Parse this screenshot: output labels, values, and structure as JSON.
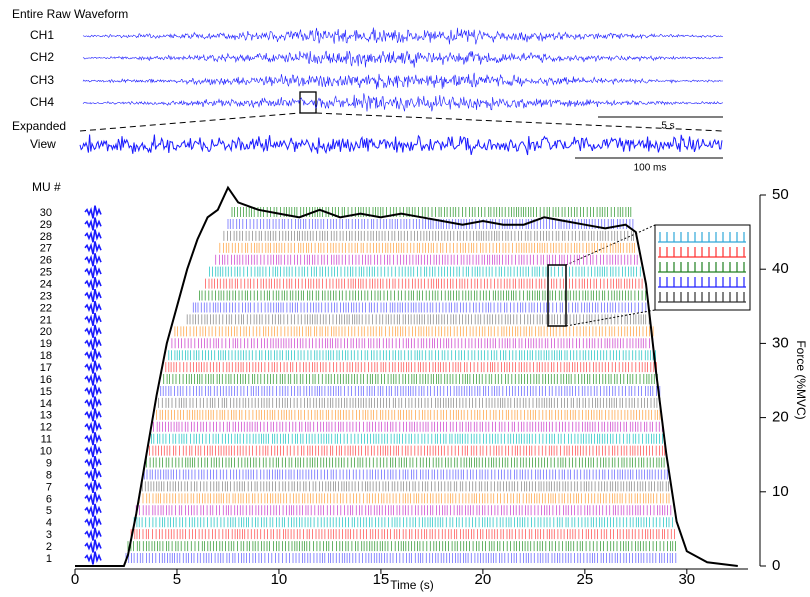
{
  "header": {
    "title": "Entire Raw Waveform",
    "channels": [
      "CH1",
      "CH2",
      "CH3",
      "CH4"
    ],
    "scale_bar": "5 s",
    "expanded": [
      "Expanded",
      "View"
    ],
    "expanded_scale_bar": "100 ms"
  },
  "chart_data": {
    "type": "line",
    "x_label": "Time (s)",
    "y2_label": "Force (%MVC)",
    "mu_label": "MU #",
    "xlim": [
      0,
      33
    ],
    "xticks": [
      0,
      5,
      10,
      15,
      20,
      25,
      30
    ],
    "y2lim": [
      0,
      50
    ],
    "y2ticks": [
      0,
      10,
      20,
      30,
      40,
      50
    ],
    "color": "#000000",
    "axis": "y2",
    "x": [
      0,
      2.4,
      2.6,
      3,
      3.5,
      4,
      4.5,
      5,
      5.5,
      6,
      6.5,
      7,
      7.5,
      8,
      9,
      10,
      11,
      12,
      13,
      14,
      15,
      16,
      17,
      18,
      19,
      20,
      21,
      22,
      23,
      24,
      25,
      26,
      27,
      27.5,
      28,
      28.5,
      29,
      29.5,
      30,
      31,
      32.5
    ],
    "values": [
      0,
      0,
      1.5,
      7,
      15,
      23,
      30,
      35,
      40,
      44,
      47,
      48,
      51,
      49,
      48,
      47.5,
      47,
      48,
      47,
      47.5,
      47,
      47.5,
      47,
      46.5,
      46,
      46.5,
      46,
      46,
      47,
      46.5,
      46,
      45.5,
      46,
      45,
      38,
      26,
      15,
      6,
      2,
      0.5,
      0
    ],
    "motor_units": [
      {
        "label": "1",
        "color": "#7070ff",
        "start": 2.5,
        "end": 29.6
      },
      {
        "label": "2",
        "color": "#40a040",
        "start": 2.6,
        "end": 29.5
      },
      {
        "label": "3",
        "color": "#ff5a5a",
        "start": 2.75,
        "end": 29.45
      },
      {
        "label": "4",
        "color": "#30c8c8",
        "start": 2.9,
        "end": 29.4
      },
      {
        "label": "5",
        "color": "#d050d0",
        "start": 3.0,
        "end": 29.3
      },
      {
        "label": "6",
        "color": "#ffaa50",
        "start": 3.15,
        "end": 29.25
      },
      {
        "label": "7",
        "color": "#909090",
        "start": 3.3,
        "end": 29.2
      },
      {
        "label": "8",
        "color": "#7070ff",
        "start": 3.4,
        "end": 29.1
      },
      {
        "label": "9",
        "color": "#40a040",
        "start": 3.5,
        "end": 29.05
      },
      {
        "label": "10",
        "color": "#ff5a5a",
        "start": 3.65,
        "end": 29.0
      },
      {
        "label": "11",
        "color": "#30c8c8",
        "start": 3.75,
        "end": 28.9
      },
      {
        "label": "12",
        "color": "#d050d0",
        "start": 3.85,
        "end": 28.85
      },
      {
        "label": "13",
        "color": "#ffaa50",
        "start": 4.0,
        "end": 28.8
      },
      {
        "label": "14",
        "color": "#909090",
        "start": 4.1,
        "end": 28.75
      },
      {
        "label": "15",
        "color": "#7070ff",
        "start": 4.2,
        "end": 28.7
      },
      {
        "label": "16",
        "color": "#40a040",
        "start": 4.35,
        "end": 28.6
      },
      {
        "label": "17",
        "color": "#ff5a5a",
        "start": 4.45,
        "end": 28.55
      },
      {
        "label": "18",
        "color": "#30c8c8",
        "start": 4.6,
        "end": 28.5
      },
      {
        "label": "19",
        "color": "#d050d0",
        "start": 4.75,
        "end": 28.4
      },
      {
        "label": "20",
        "color": "#ffaa50",
        "start": 4.9,
        "end": 28.35
      },
      {
        "label": "21",
        "color": "#909090",
        "start": 5.5,
        "end": 28.2
      },
      {
        "label": "22",
        "color": "#7070ff",
        "start": 5.8,
        "end": 28.1
      },
      {
        "label": "23",
        "color": "#40a040",
        "start": 6.1,
        "end": 28.0
      },
      {
        "label": "24",
        "color": "#ff5a5a",
        "start": 6.4,
        "end": 27.9
      },
      {
        "label": "25",
        "color": "#30c8c8",
        "start": 6.6,
        "end": 27.8
      },
      {
        "label": "26",
        "color": "#d050d0",
        "start": 6.9,
        "end": 27.7
      },
      {
        "label": "27",
        "color": "#ffaa50",
        "start": 7.1,
        "end": 27.6
      },
      {
        "label": "28",
        "color": "#909090",
        "start": 7.3,
        "end": 27.5
      },
      {
        "label": "29",
        "color": "#7070ff",
        "start": 7.5,
        "end": 27.4
      },
      {
        "label": "30",
        "color": "#40a040",
        "start": 7.7,
        "end": 27.3
      }
    ]
  }
}
